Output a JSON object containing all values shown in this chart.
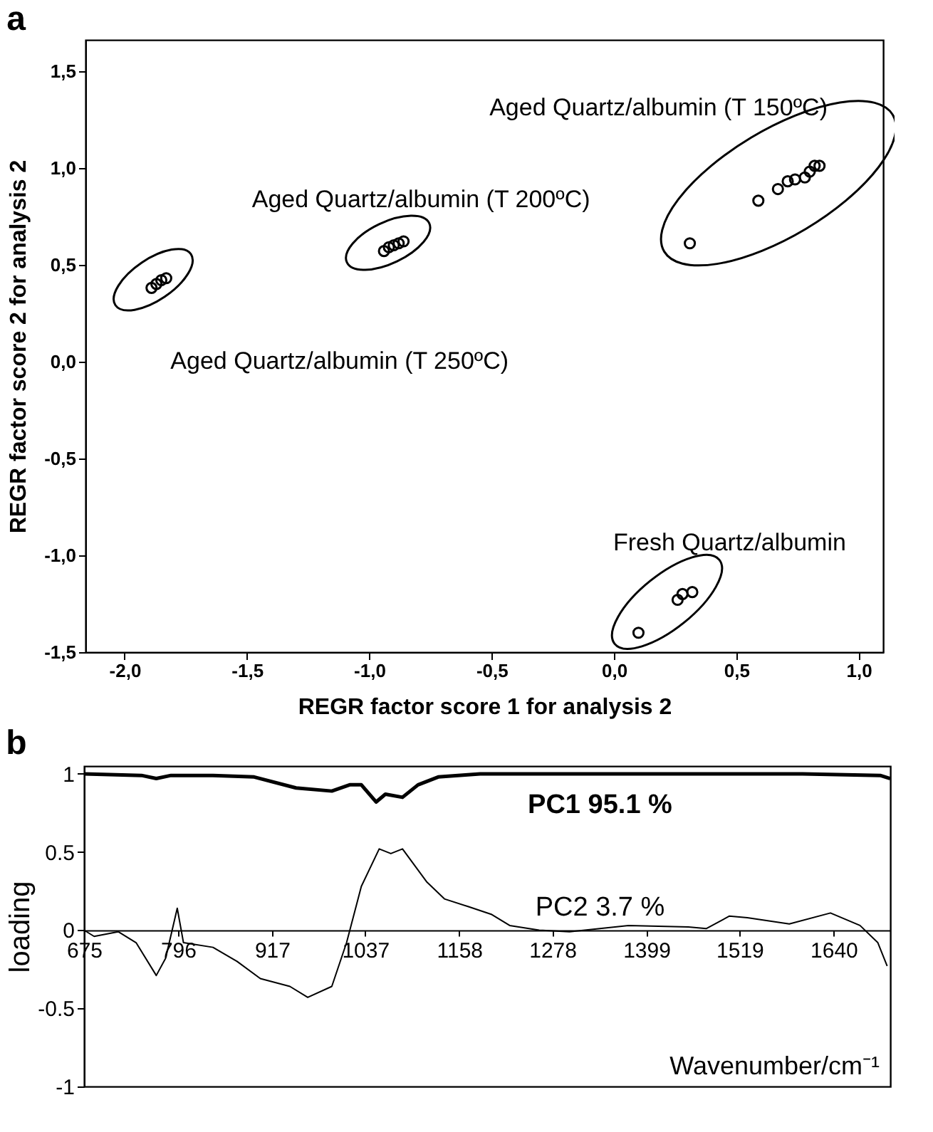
{
  "chart_data": [
    {
      "type": "scatter",
      "title": "a",
      "xlabel": "REGR factor score 1 for analysis 2",
      "ylabel": "REGR factor score 2 for analysis 2",
      "xlim": [
        -2.16,
        1.1
      ],
      "ylim": [
        -1.5,
        1.66
      ],
      "xticks": [
        {
          "value": -2,
          "label": "-2,0"
        },
        {
          "value": -1.5,
          "label": "-1,5"
        },
        {
          "value": -1,
          "label": "-1,0"
        },
        {
          "value": -0.5,
          "label": "-0,5"
        },
        {
          "value": 0,
          "label": "0,0"
        },
        {
          "value": 0.5,
          "label": "0,5"
        },
        {
          "value": 1,
          "label": "1,0"
        }
      ],
      "yticks": [
        {
          "value": -1.5,
          "label": "-1,5"
        },
        {
          "value": -1,
          "label": "-1,0"
        },
        {
          "value": -0.5,
          "label": "-0,5"
        },
        {
          "value": 0,
          "label": "0,0"
        },
        {
          "value": 0.5,
          "label": "0,5"
        },
        {
          "value": 1,
          "label": "1,0"
        },
        {
          "value": 1.5,
          "label": "1,5"
        }
      ],
      "marker": "circle",
      "series": [
        {
          "name": "Aged Quartz/albumin (T 250ºC)",
          "color": "#000000",
          "x": [
            -1.89,
            -1.87,
            -1.85,
            -1.83
          ],
          "values": [
            0.38,
            0.4,
            0.42,
            0.43
          ]
        },
        {
          "name": "Aged Quartz/albumin (T 200ºC)",
          "color": "#000000",
          "x": [
            -0.94,
            -0.92,
            -0.9,
            -0.88,
            -0.86
          ],
          "values": [
            0.57,
            0.59,
            0.6,
            0.61,
            0.62
          ]
        },
        {
          "name": "Aged Quartz/albumin (T 150ºC)",
          "color": "#000000",
          "x": [
            0.31,
            0.59,
            0.67,
            0.71,
            0.74,
            0.78,
            0.8,
            0.82,
            0.84
          ],
          "values": [
            0.61,
            0.83,
            0.89,
            0.93,
            0.94,
            0.95,
            0.98,
            1.01,
            1.01
          ]
        },
        {
          "name": "Fresh Quartz/albumin",
          "color": "#000000",
          "x": [
            0.1,
            0.26,
            0.28,
            0.32
          ],
          "values": [
            -1.4,
            -1.23,
            -1.2,
            -1.19
          ]
        }
      ]
    },
    {
      "type": "line",
      "title": "b",
      "xlabel": "Wavenumber/cm⁻¹",
      "ylabel": "loading",
      "xlim": [
        675,
        1713
      ],
      "ylim": [
        -1,
        1.05
      ],
      "xticks": [
        675,
        796,
        917,
        1037,
        1158,
        1278,
        1399,
        1519,
        1640
      ],
      "yticks": [
        -1,
        -0.5,
        0,
        0.5,
        1
      ],
      "marker": "none",
      "series": [
        {
          "name": "PC1 95.1 %",
          "color": "#000000",
          "x": [
            675,
            749,
            768,
            787,
            841,
            894,
            948,
            994,
            1017,
            1032,
            1051,
            1063,
            1085,
            1105,
            1131,
            1185,
            1300,
            1450,
            1600,
            1700,
            1713
          ],
          "values": [
            1.0,
            0.99,
            0.97,
            0.99,
            0.99,
            0.98,
            0.91,
            0.89,
            0.93,
            0.93,
            0.82,
            0.87,
            0.85,
            0.93,
            0.98,
            1.0,
            1.0,
            1.0,
            1.0,
            0.99,
            0.97
          ]
        },
        {
          "name": "PC2 3.7 %",
          "color": "#000000",
          "x": [
            675,
            688,
            719,
            742,
            768,
            780,
            795,
            803,
            841,
            872,
            902,
            940,
            963,
            994,
            1013,
            1032,
            1055,
            1070,
            1085,
            1116,
            1139,
            1170,
            1200,
            1223,
            1261,
            1300,
            1376,
            1453,
            1476,
            1506,
            1529,
            1583,
            1636,
            1674,
            1697,
            1709
          ],
          "values": [
            0,
            -0.04,
            -0.01,
            -0.08,
            -0.29,
            -0.18,
            0.14,
            -0.08,
            -0.11,
            -0.2,
            -0.31,
            -0.36,
            -0.43,
            -0.36,
            -0.08,
            0.28,
            0.52,
            0.49,
            0.52,
            0.31,
            0.2,
            0.15,
            0.1,
            0.03,
            0,
            -0.01,
            0.03,
            0.02,
            0.01,
            0.09,
            0.08,
            0.04,
            0.11,
            0.03,
            -0.08,
            -0.23
          ]
        }
      ]
    }
  ]
}
